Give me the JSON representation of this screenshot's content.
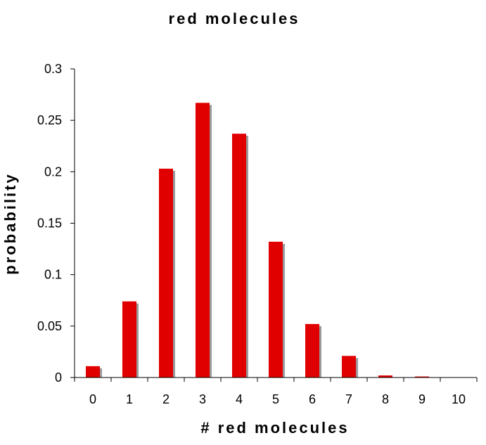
{
  "chart_data": {
    "type": "bar",
    "title": "red molecules",
    "xlabel": "# red molecules",
    "ylabel": "probability",
    "categories": [
      "0",
      "1",
      "2",
      "3",
      "4",
      "5",
      "6",
      "7",
      "8",
      "9",
      "10"
    ],
    "values": [
      0.011,
      0.074,
      0.203,
      0.267,
      0.237,
      0.132,
      0.052,
      0.021,
      0.002,
      0.001,
      0
    ],
    "ylim": [
      0,
      0.3
    ],
    "yticks": [
      0,
      0.05,
      0.1,
      0.15,
      0.2,
      0.25,
      0.3
    ],
    "ytick_labels": [
      "0",
      "0.05",
      "0.1",
      "0.15",
      "0.2",
      "0.25",
      "0.3"
    ],
    "grid": false,
    "legend": "none",
    "bar_color": "#e00000",
    "shadow_color": "#9a9a9a"
  }
}
